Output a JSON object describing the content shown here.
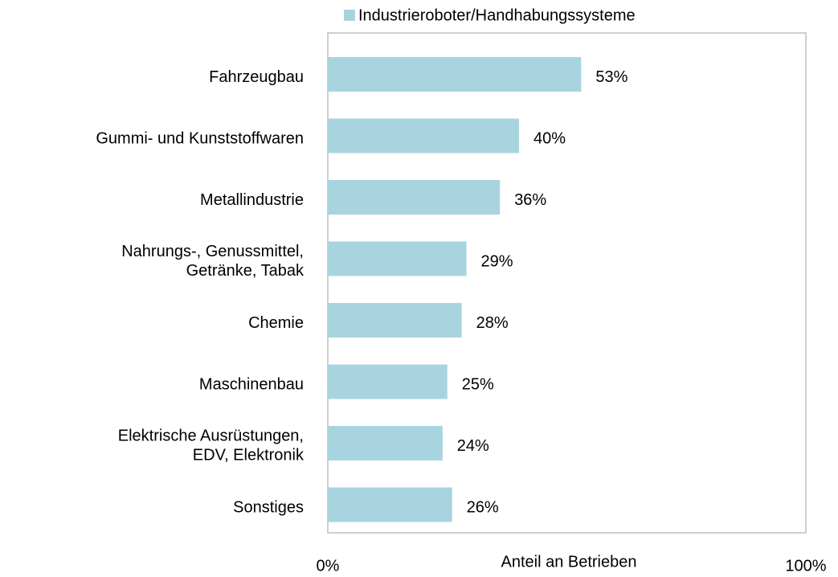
{
  "chart_data": {
    "type": "bar",
    "orientation": "horizontal",
    "x_label": "Anteil an Betrieben",
    "categories": [
      "Fahrzeugbau",
      "Gummi- und Kunststoffwaren",
      "Metallindustrie",
      "Nahrungs-, Genussmittel,\nGetränke, Tabak",
      "Chemie",
      "Maschinenbau",
      "Elektrische Ausrüstungen,\nEDV, Elektronik",
      "Sonstiges"
    ],
    "series": [
      {
        "name": "Industrieroboter/Handhabungssysteme",
        "color": "#a8d4e0",
        "values": [
          53,
          40,
          36,
          29,
          28,
          25,
          24,
          26
        ],
        "value_labels": [
          "53%",
          "40%",
          "36%",
          "29%",
          "28%",
          "25%",
          "24%",
          "26%"
        ]
      }
    ],
    "xlim": [
      0,
      100
    ],
    "xticks": [
      {
        "value": 0,
        "label": "0%"
      },
      {
        "value": 100,
        "label": "100%"
      }
    ],
    "legend": "top"
  }
}
